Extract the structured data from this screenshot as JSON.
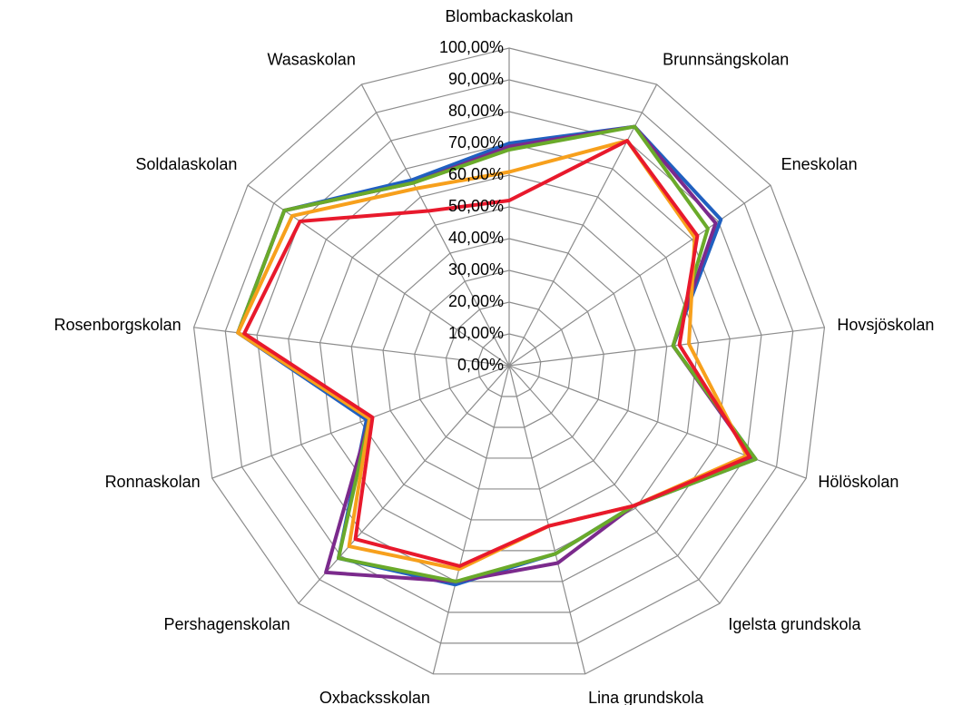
{
  "chart_data": {
    "type": "radar",
    "categories": [
      "Blombackaskolan",
      "Brunnsängskolan",
      "Eneskolan",
      "Hovsjöskolan",
      "Hölöskolan",
      "Igelsta grundskola",
      "Lina grundskola",
      "Oxbacksskolan",
      "Pershagenskolan",
      "Ronnaskolan",
      "Rosenborgskolan",
      "Soldalaskolan",
      "Wasaskolan"
    ],
    "series": [
      {
        "color": "#2060c0",
        "values": [
          0.7,
          0.85,
          0.81,
          0.52,
          0.83,
          0.59,
          0.61,
          0.71,
          0.81,
          0.48,
          0.86,
          0.86,
          0.66
        ]
      },
      {
        "color": "#7b2a8c",
        "values": [
          0.69,
          0.85,
          0.79,
          0.52,
          0.82,
          0.59,
          0.64,
          0.7,
          0.87,
          0.47,
          0.86,
          0.86,
          0.65
        ]
      },
      {
        "color": "#6aaa2a",
        "values": [
          0.68,
          0.85,
          0.76,
          0.52,
          0.83,
          0.59,
          0.61,
          0.7,
          0.81,
          0.47,
          0.86,
          0.86,
          0.65
        ]
      },
      {
        "color": "#f7a01c",
        "values": [
          0.61,
          0.8,
          0.71,
          0.57,
          0.8,
          0.59,
          0.52,
          0.66,
          0.76,
          0.47,
          0.86,
          0.83,
          0.63
        ]
      },
      {
        "color": "#e8192c",
        "values": [
          0.52,
          0.8,
          0.72,
          0.54,
          0.81,
          0.59,
          0.52,
          0.65,
          0.73,
          0.46,
          0.84,
          0.8,
          0.55
        ]
      }
    ],
    "ylim": [
      0,
      1
    ],
    "yticks": [
      {
        "value": 0,
        "label": "0,00%"
      },
      {
        "value": 0.1,
        "label": "10,00%"
      },
      {
        "value": 0.2,
        "label": "20,00%"
      },
      {
        "value": 0.3,
        "label": "30,00%"
      },
      {
        "value": 0.4,
        "label": "40,00%"
      },
      {
        "value": 0.5,
        "label": "50,00%"
      },
      {
        "value": 0.6,
        "label": "60,00%"
      },
      {
        "value": 0.7,
        "label": "70,00%"
      },
      {
        "value": 0.8,
        "label": "80,00%"
      },
      {
        "value": 0.9,
        "label": "90,00%"
      },
      {
        "value": 1,
        "label": "100,00%"
      }
    ],
    "grid": true
  }
}
